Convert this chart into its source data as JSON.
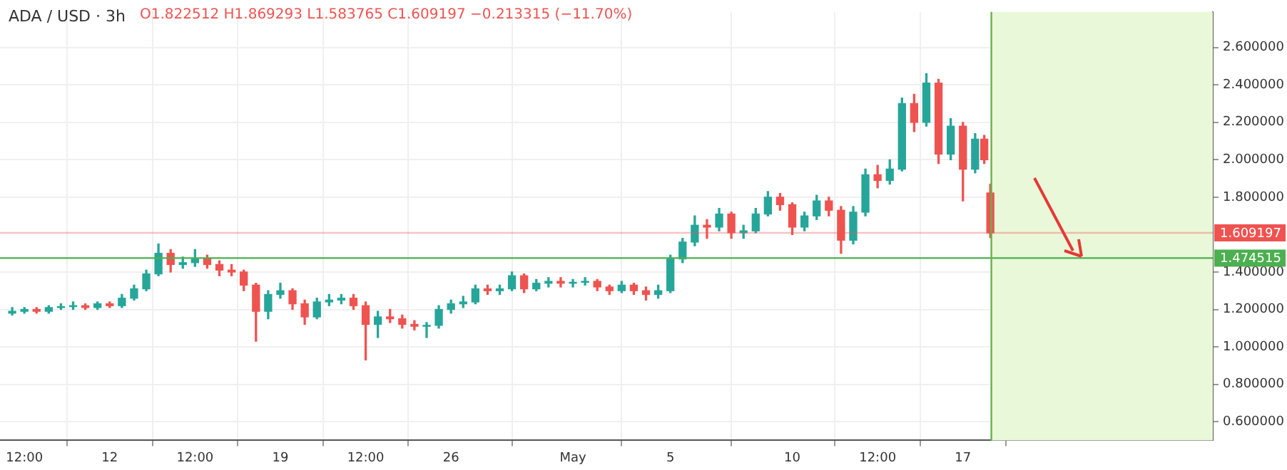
{
  "chart_data": {
    "type": "candlestick",
    "title": "ADA / USD · 3h",
    "subtitle": "O1.822512 H1.869293 L1.583765 C1.609197 −0.213315 (−11.70%)",
    "x": [
      "--04-08T00:00",
      "--04-08T12:00",
      "--04-09T00:00",
      "--04-09T12:00",
      "--04-10T00:00",
      "--04-10T12:00",
      "--04-11T00:00",
      "--04-11T12:00",
      "--04-12T00:00",
      "--04-12T12:00",
      "--04-13T00:00",
      "--04-13T12:00",
      "--04-14T00:00",
      "--04-14T12:00",
      "--04-15T00:00",
      "--04-15T12:00",
      "--04-16T00:00",
      "--04-16T12:00",
      "--04-17T00:00",
      "--04-17T12:00",
      "--04-18T00:00",
      "--04-18T12:00",
      "--04-19T00:00",
      "--04-19T12:00",
      "--04-20T00:00",
      "--04-20T12:00",
      "--04-21T00:00",
      "--04-21T12:00",
      "--04-22T00:00",
      "--04-22T12:00",
      "--04-23T00:00",
      "--04-23T12:00",
      "--04-24T00:00",
      "--04-24T12:00",
      "--04-25T00:00",
      "--04-25T12:00",
      "--04-26T00:00",
      "--04-26T12:00",
      "--04-27T00:00",
      "--04-27T12:00",
      "--04-28T00:00",
      "--04-28T12:00",
      "--04-29T00:00",
      "--04-29T12:00",
      "--04-30T00:00",
      "--04-30T12:00",
      "--05-01T00:00",
      "--05-01T12:00",
      "--05-02T00:00",
      "--05-02T12:00",
      "--05-03T00:00",
      "--05-03T12:00",
      "--05-04T00:00",
      "--05-04T12:00",
      "--05-05T00:00",
      "--05-05T12:00",
      "--05-06T00:00",
      "--05-06T12:00",
      "--05-07T00:00",
      "--05-07T12:00",
      "--05-08T00:00",
      "--05-08T12:00",
      "--05-09T00:00",
      "--05-09T12:00",
      "--05-10T00:00",
      "--05-10T12:00",
      "--05-11T00:00",
      "--05-11T12:00",
      "--05-12T00:00",
      "--05-12T12:00",
      "--05-13T00:00",
      "--05-13T12:00",
      "--05-14T00:00",
      "--05-14T12:00",
      "--05-15T00:00",
      "--05-15T12:00",
      "--05-16T00:00",
      "--05-16T12:00",
      "--05-17T00:00",
      "--05-17T12:00",
      "--05-17T21:00",
      "--05-18T03:00"
    ],
    "ohlc": [
      [
        1.18,
        1.21,
        1.17,
        1.19
      ],
      [
        1.19,
        1.21,
        1.18,
        1.2
      ],
      [
        1.2,
        1.21,
        1.18,
        1.19
      ],
      [
        1.19,
        1.22,
        1.18,
        1.21
      ],
      [
        1.21,
        1.23,
        1.2,
        1.215
      ],
      [
        1.215,
        1.24,
        1.2,
        1.22
      ],
      [
        1.22,
        1.23,
        1.2,
        1.21
      ],
      [
        1.21,
        1.24,
        1.2,
        1.23
      ],
      [
        1.23,
        1.24,
        1.21,
        1.22
      ],
      [
        1.22,
        1.28,
        1.21,
        1.26
      ],
      [
        1.26,
        1.33,
        1.25,
        1.31
      ],
      [
        1.31,
        1.41,
        1.3,
        1.39
      ],
      [
        1.39,
        1.55,
        1.38,
        1.5
      ],
      [
        1.5,
        1.52,
        1.4,
        1.44
      ],
      [
        1.44,
        1.48,
        1.42,
        1.45
      ],
      [
        1.45,
        1.52,
        1.43,
        1.47
      ],
      [
        1.47,
        1.49,
        1.42,
        1.44
      ],
      [
        1.44,
        1.46,
        1.38,
        1.41
      ],
      [
        1.41,
        1.44,
        1.38,
        1.4
      ],
      [
        1.4,
        1.41,
        1.3,
        1.33
      ],
      [
        1.33,
        1.34,
        1.03,
        1.19
      ],
      [
        1.19,
        1.3,
        1.15,
        1.28
      ],
      [
        1.28,
        1.34,
        1.26,
        1.3
      ],
      [
        1.3,
        1.31,
        1.2,
        1.23
      ],
      [
        1.23,
        1.25,
        1.12,
        1.16
      ],
      [
        1.16,
        1.26,
        1.15,
        1.24
      ],
      [
        1.24,
        1.28,
        1.22,
        1.25
      ],
      [
        1.25,
        1.28,
        1.23,
        1.26
      ],
      [
        1.26,
        1.28,
        1.2,
        1.22
      ],
      [
        1.22,
        1.24,
        0.93,
        1.12
      ],
      [
        1.12,
        1.19,
        1.05,
        1.16
      ],
      [
        1.16,
        1.2,
        1.13,
        1.15
      ],
      [
        1.15,
        1.17,
        1.1,
        1.12
      ],
      [
        1.12,
        1.14,
        1.09,
        1.11
      ],
      [
        1.11,
        1.13,
        1.05,
        1.115
      ],
      [
        1.115,
        1.22,
        1.1,
        1.2
      ],
      [
        1.2,
        1.25,
        1.18,
        1.23
      ],
      [
        1.23,
        1.27,
        1.21,
        1.24
      ],
      [
        1.24,
        1.33,
        1.23,
        1.31
      ],
      [
        1.31,
        1.33,
        1.28,
        1.3
      ],
      [
        1.3,
        1.33,
        1.28,
        1.31
      ],
      [
        1.31,
        1.4,
        1.3,
        1.38
      ],
      [
        1.38,
        1.39,
        1.29,
        1.31
      ],
      [
        1.31,
        1.36,
        1.3,
        1.34
      ],
      [
        1.34,
        1.37,
        1.32,
        1.35
      ],
      [
        1.35,
        1.37,
        1.32,
        1.34
      ],
      [
        1.34,
        1.36,
        1.32,
        1.345
      ],
      [
        1.345,
        1.37,
        1.33,
        1.35
      ],
      [
        1.35,
        1.36,
        1.3,
        1.32
      ],
      [
        1.32,
        1.33,
        1.28,
        1.3
      ],
      [
        1.3,
        1.35,
        1.29,
        1.33
      ],
      [
        1.33,
        1.34,
        1.28,
        1.3
      ],
      [
        1.3,
        1.32,
        1.25,
        1.28
      ],
      [
        1.28,
        1.33,
        1.26,
        1.3
      ],
      [
        1.3,
        1.49,
        1.29,
        1.47
      ],
      [
        1.47,
        1.58,
        1.45,
        1.56
      ],
      [
        1.56,
        1.7,
        1.54,
        1.65
      ],
      [
        1.65,
        1.68,
        1.58,
        1.64
      ],
      [
        1.64,
        1.74,
        1.62,
        1.71
      ],
      [
        1.71,
        1.72,
        1.58,
        1.61
      ],
      [
        1.61,
        1.65,
        1.58,
        1.62
      ],
      [
        1.62,
        1.74,
        1.61,
        1.71
      ],
      [
        1.71,
        1.83,
        1.7,
        1.8
      ],
      [
        1.8,
        1.82,
        1.73,
        1.76
      ],
      [
        1.76,
        1.77,
        1.6,
        1.64
      ],
      [
        1.64,
        1.72,
        1.62,
        1.7
      ],
      [
        1.7,
        1.81,
        1.68,
        1.78
      ],
      [
        1.78,
        1.8,
        1.7,
        1.73
      ],
      [
        1.73,
        1.75,
        1.5,
        1.57
      ],
      [
        1.57,
        1.75,
        1.55,
        1.72
      ],
      [
        1.72,
        1.95,
        1.7,
        1.92
      ],
      [
        1.92,
        1.97,
        1.85,
        1.89
      ],
      [
        1.89,
        2.0,
        1.87,
        1.95
      ],
      [
        1.95,
        2.33,
        1.94,
        2.3
      ],
      [
        2.3,
        2.35,
        2.15,
        2.2
      ],
      [
        2.2,
        2.46,
        2.18,
        2.41
      ],
      [
        2.41,
        2.43,
        1.98,
        2.03
      ],
      [
        2.03,
        2.22,
        2.0,
        2.18
      ],
      [
        2.18,
        2.2,
        1.78,
        1.95
      ],
      [
        1.95,
        2.14,
        1.93,
        2.11
      ],
      [
        2.11,
        2.13,
        1.98,
        2.0
      ],
      [
        1.822512,
        1.869293,
        1.583765,
        1.609197
      ]
    ],
    "colors": [
      "#26a69a",
      "#26a69a",
      "#ef5350",
      "#26a69a",
      "#26a69a",
      "#26a69a",
      "#ef5350",
      "#26a69a",
      "#ef5350",
      "#26a69a",
      "#26a69a",
      "#26a69a",
      "#26a69a",
      "#ef5350",
      "#26a69a",
      "#26a69a",
      "#ef5350",
      "#ef5350",
      "#ef5350",
      "#ef5350",
      "#ef5350",
      "#26a69a",
      "#26a69a",
      "#ef5350",
      "#ef5350",
      "#26a69a",
      "#26a69a",
      "#26a69a",
      "#ef5350",
      "#ef5350",
      "#26a69a",
      "#ef5350",
      "#ef5350",
      "#ef5350",
      "#26a69a",
      "#26a69a",
      "#26a69a",
      "#26a69a",
      "#26a69a",
      "#ef5350",
      "#26a69a",
      "#26a69a",
      "#ef5350",
      "#26a69a",
      "#26a69a",
      "#ef5350",
      "#26a69a",
      "#26a69a",
      "#ef5350",
      "#ef5350",
      "#26a69a",
      "#ef5350",
      "#ef5350",
      "#26a69a",
      "#26a69a",
      "#26a69a",
      "#26a69a",
      "#ef5350",
      "#26a69a",
      "#ef5350",
      "#26a69a",
      "#26a69a",
      "#26a69a",
      "#ef5350",
      "#ef5350",
      "#26a69a",
      "#26a69a",
      "#ef5350",
      "#ef5350",
      "#26a69a",
      "#26a69a",
      "#ef5350",
      "#26a69a",
      "#26a69a",
      "#ef5350",
      "#26a69a",
      "#ef5350",
      "#26a69a",
      "#ef5350",
      "#26a69a",
      "#ef5350",
      "#ef5350"
    ],
    "xlim": [
      "--04-07T12:00",
      "--05-27T06:00"
    ],
    "xticks": [
      {
        "value": "--04-08T12:00",
        "label": "12:00"
      },
      {
        "value": "--04-12",
        "label": "12"
      },
      {
        "value": "--04-15T12:00",
        "label": "12:00"
      },
      {
        "value": "--04-19",
        "label": "19"
      },
      {
        "value": "--04-22T12:00",
        "label": "12:00"
      },
      {
        "value": "--04-26",
        "label": "26"
      },
      {
        "value": "--05-01",
        "label": "May"
      },
      {
        "value": "--05-05",
        "label": "5"
      },
      {
        "value": "--05-10",
        "label": "10"
      },
      {
        "value": "--05-13T12:00",
        "label": "12:00"
      },
      {
        "value": "--05-17",
        "label": "17"
      }
    ],
    "ylim": [
      0.5,
      2.79
    ],
    "yticks": [
      {
        "value": 0.6,
        "label": "0.600000"
      },
      {
        "value": 0.8,
        "label": "0.800000"
      },
      {
        "value": 1.0,
        "label": "1.000000"
      },
      {
        "value": 1.2,
        "label": "1.200000"
      },
      {
        "value": 1.4,
        "label": "1.400000"
      },
      {
        "value": 1.8,
        "label": "1.800000"
      },
      {
        "value": 2.0,
        "label": "2.000000"
      },
      {
        "value": 2.2,
        "label": "2.200000"
      },
      {
        "value": 2.4,
        "label": "2.400000"
      },
      {
        "value": 2.6,
        "label": "2.600000"
      }
    ],
    "grid": true,
    "ref_lines": [
      {
        "axis": "y",
        "value": 1.609197,
        "label": "1.609197",
        "color": "#ef5350"
      },
      {
        "axis": "y",
        "value": 1.474515,
        "label": "1.474515",
        "color": "#4caf50"
      },
      {
        "axis": "x",
        "value": "--05-18T04:00",
        "color": "#6ab04c"
      }
    ],
    "bands": [
      {
        "axis": "x",
        "from": "--05-18T04:00",
        "to": "--05-27T06:00",
        "color": "#e9f8d9"
      }
    ]
  }
}
